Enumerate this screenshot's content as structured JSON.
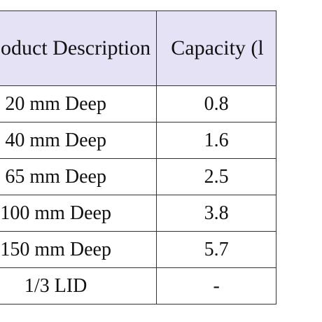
{
  "table": {
    "header": [
      "oduct Description",
      "Capacity (l"
    ],
    "rows": [
      [
        "20 mm Deep",
        "0.8"
      ],
      [
        "40 mm Deep",
        "1.6"
      ],
      [
        "65 mm Deep",
        "2.5"
      ],
      [
        "100 mm Deep",
        "3.8"
      ],
      [
        "150 mm Deep",
        "5.7"
      ],
      [
        "1/3 LID",
        "-"
      ]
    ]
  }
}
